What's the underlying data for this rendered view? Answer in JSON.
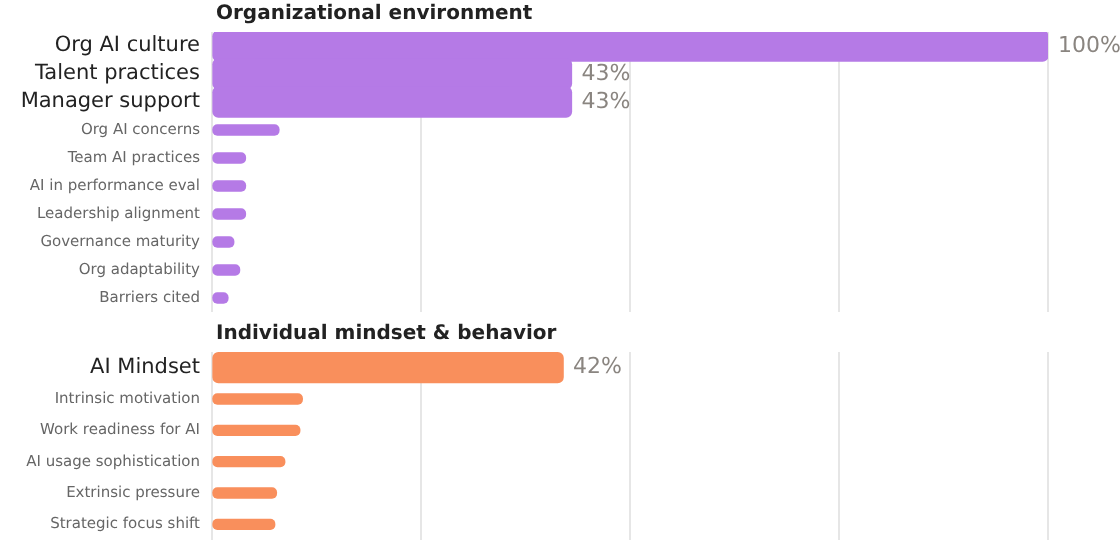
{
  "chart_data": [
    {
      "type": "bar",
      "orientation": "horizontal",
      "title": "Organizational environment",
      "categories": [
        "Org AI culture",
        "Talent practices",
        "Manager support",
        "Org AI concerns",
        "Team AI practices",
        "AI in performance eval",
        "Leadership alignment",
        "Governance maturity",
        "Org adaptability",
        "Barriers cited"
      ],
      "values": [
        100,
        43,
        43,
        8,
        4,
        4,
        4,
        2.6,
        3.3,
        1.9
      ],
      "value_labels": [
        "100%",
        "43%",
        "43%",
        null,
        null,
        null,
        null,
        null,
        null,
        null
      ],
      "color": "#b57ae6",
      "xlim": [
        0,
        100
      ],
      "xticks": [
        {
          "value": 0,
          "label": null
        },
        {
          "value": 25,
          "label": null
        },
        {
          "value": 50,
          "label": null
        },
        {
          "value": 75,
          "label": null
        },
        {
          "value": 100,
          "label": null
        }
      ],
      "grid": "x",
      "tick_labels": "y"
    },
    {
      "type": "bar",
      "orientation": "horizontal",
      "title": "Individual mindset & behavior",
      "categories": [
        "AI Mindset",
        "Intrinsic motivation",
        "Work readiness for AI",
        "AI usage sophistication",
        "Extrinsic pressure",
        "Strategic focus shift"
      ],
      "values": [
        42,
        10.8,
        10.5,
        8.7,
        7.7,
        7.5
      ],
      "value_labels": [
        "42%",
        null,
        null,
        null,
        null,
        null
      ],
      "color": "#f98f5c",
      "xlim": [
        0,
        100
      ],
      "xticks": [
        {
          "value": 0,
          "label": null
        },
        {
          "value": 25,
          "label": null
        },
        {
          "value": 50,
          "label": null
        },
        {
          "value": 75,
          "label": null
        },
        {
          "value": 100,
          "label": null
        }
      ],
      "grid": "x",
      "tick_labels": "y"
    }
  ]
}
